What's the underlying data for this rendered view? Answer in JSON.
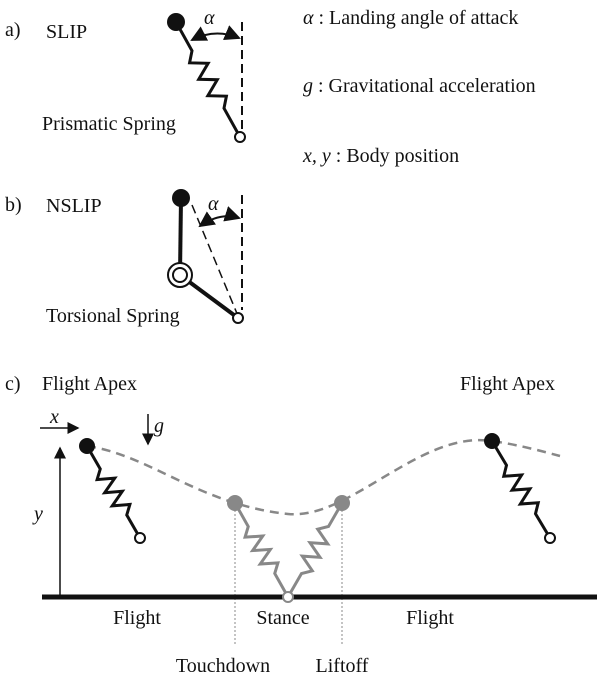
{
  "panel_a": {
    "label": "a)",
    "title": "SLIP",
    "angle": "α",
    "spring": "Prismatic Spring"
  },
  "legend": [
    {
      "symbol": "α",
      "text": ": Landing angle of attack"
    },
    {
      "symbol": "g",
      "text": ": Gravitational acceleration"
    },
    {
      "symbol": "x, y",
      "text": ": Body position"
    }
  ],
  "panel_b": {
    "label": "b)",
    "title": "NSLIP",
    "angle": "α",
    "spring": "Torsional Spring"
  },
  "panel_c": {
    "label": "c)",
    "apex_left": "Flight Apex",
    "apex_right": "Flight Apex",
    "x_axis": "x",
    "gravity": "g",
    "y_axis": "y",
    "phases": [
      "Flight",
      "Stance",
      "Flight"
    ],
    "events": [
      "Touchdown",
      "Liftoff"
    ]
  }
}
